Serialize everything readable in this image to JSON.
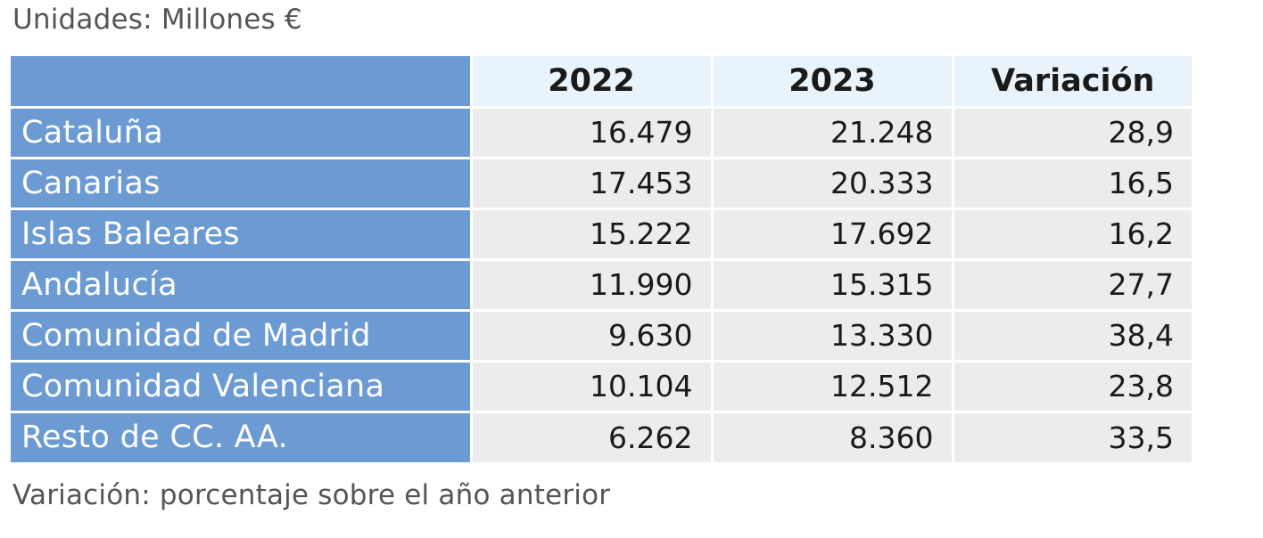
{
  "units_label": "Unidades: Millones €",
  "note": "Variación: porcentaje sobre el año anterior",
  "chart_data": {
    "type": "table",
    "columns": [
      "2022",
      "2023",
      "Variación"
    ],
    "rows": [
      {
        "label": "Cataluña",
        "values": [
          "16.479",
          "21.248",
          "28,9"
        ]
      },
      {
        "label": "Canarias",
        "values": [
          "17.453",
          "20.333",
          "16,5"
        ]
      },
      {
        "label": "Islas Baleares",
        "values": [
          "15.222",
          "17.692",
          "16,2"
        ]
      },
      {
        "label": "Andalucía",
        "values": [
          "11.990",
          "15.315",
          "27,7"
        ]
      },
      {
        "label": "Comunidad de Madrid",
        "values": [
          "9.630",
          "13.330",
          "38,4"
        ]
      },
      {
        "label": "Comunidad Valenciana",
        "values": [
          "10.104",
          "12.512",
          "23,8"
        ]
      },
      {
        "label": "Resto de CC. AA.",
        "values": [
          "6.262",
          "8.360",
          "33,5"
        ]
      }
    ]
  },
  "colors": {
    "row_header": "#6c9bd3",
    "column_header": "#e9f3fb",
    "cell": "#ececec"
  }
}
